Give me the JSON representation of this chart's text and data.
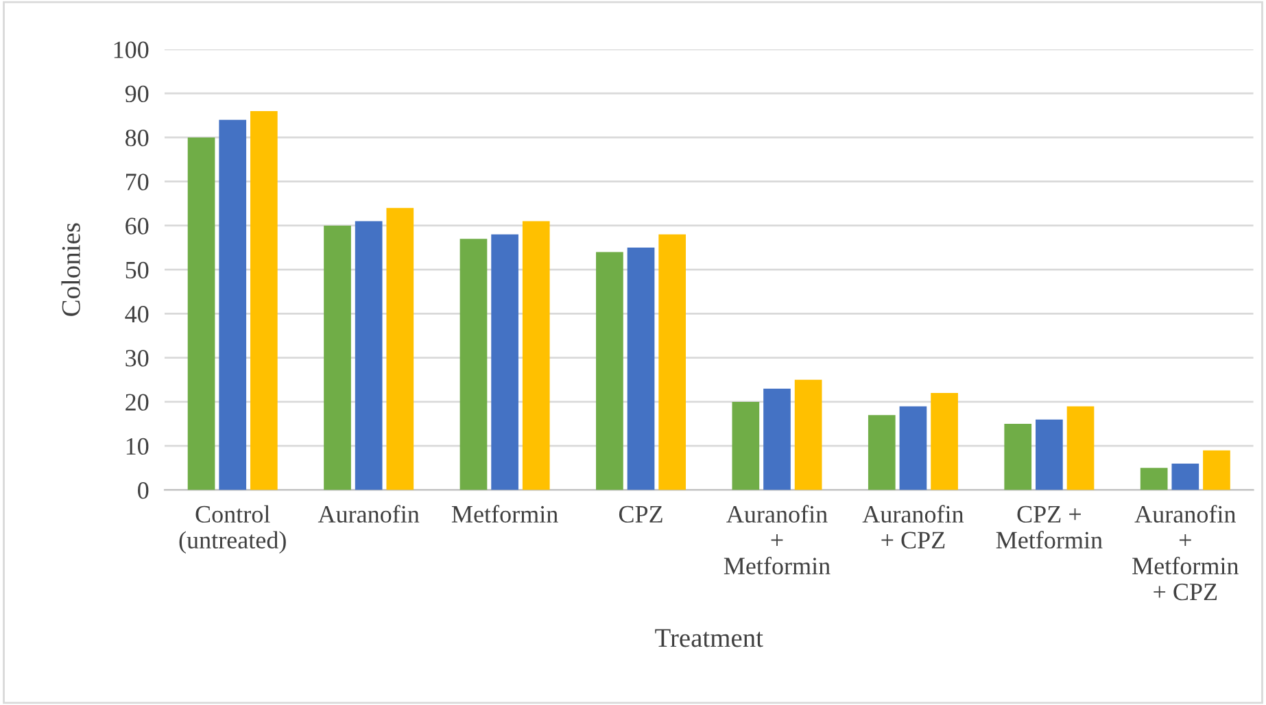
{
  "chart_data": {
    "type": "bar",
    "xlabel": "Treatment",
    "ylabel": "Colonies",
    "categories": [
      "Control\n(untreated)",
      "Auranofin",
      "Metformin",
      "CPZ",
      "Auranofin\n+\nMetformin",
      "Auranofin\n+ CPZ",
      "CPZ +\nMetformin",
      "Auranofin\n+\nMetformin\n+ CPZ"
    ],
    "series": [
      {
        "color": "#70ad47",
        "values": [
          80,
          60,
          57,
          54,
          20,
          17,
          15,
          5
        ]
      },
      {
        "color": "#4472c4",
        "values": [
          84,
          61,
          58,
          55,
          23,
          19,
          16,
          6
        ]
      },
      {
        "color": "#ffc000",
        "values": [
          86,
          64,
          61,
          58,
          25,
          22,
          19,
          9
        ]
      }
    ],
    "ylim": [
      0,
      100
    ],
    "yticks": [
      0,
      10,
      20,
      30,
      40,
      50,
      60,
      70,
      80,
      90,
      100
    ],
    "grid": "y",
    "legend": false
  }
}
